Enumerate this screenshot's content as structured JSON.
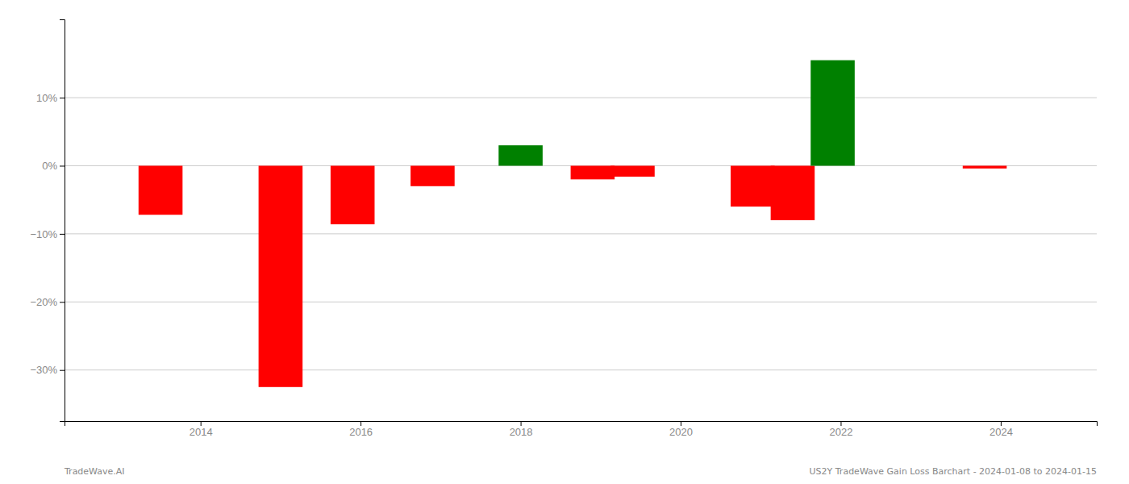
{
  "chart_data": {
    "type": "bar",
    "x": [
      2013.5,
      2015.0,
      2015.9,
      2016.9,
      2018.0,
      2018.9,
      2019.4,
      2020.9,
      2021.4,
      2021.9,
      2023.8
    ],
    "values": [
      -0.072,
      -0.325,
      -0.086,
      -0.03,
      0.03,
      -0.02,
      -0.016,
      -0.06,
      -0.08,
      0.155,
      -0.004
    ],
    "colors": [
      "#ff0000",
      "#ff0000",
      "#ff0000",
      "#ff0000",
      "#008000",
      "#ff0000",
      "#ff0000",
      "#ff0000",
      "#ff0000",
      "#008000",
      "#ff0000"
    ],
    "xlim": [
      2012.3,
      2025.2
    ],
    "xticks": [
      2014,
      2016,
      2018,
      2020,
      2022,
      2024
    ],
    "ylim": [
      -0.375,
      0.215
    ],
    "yticks": [
      {
        "value": 0.1,
        "label": "10%"
      },
      {
        "value": 0.0,
        "label": "0%"
      },
      {
        "value": -0.1,
        "label": "−10%"
      },
      {
        "value": -0.2,
        "label": "−20%"
      },
      {
        "value": -0.3,
        "label": "−30%"
      }
    ],
    "grid": true,
    "annotations": [
      "TradeWave.AI",
      "US2Y TradeWave Gain Loss Barchart - 2024-01-08 to 2024-01-15"
    ]
  }
}
